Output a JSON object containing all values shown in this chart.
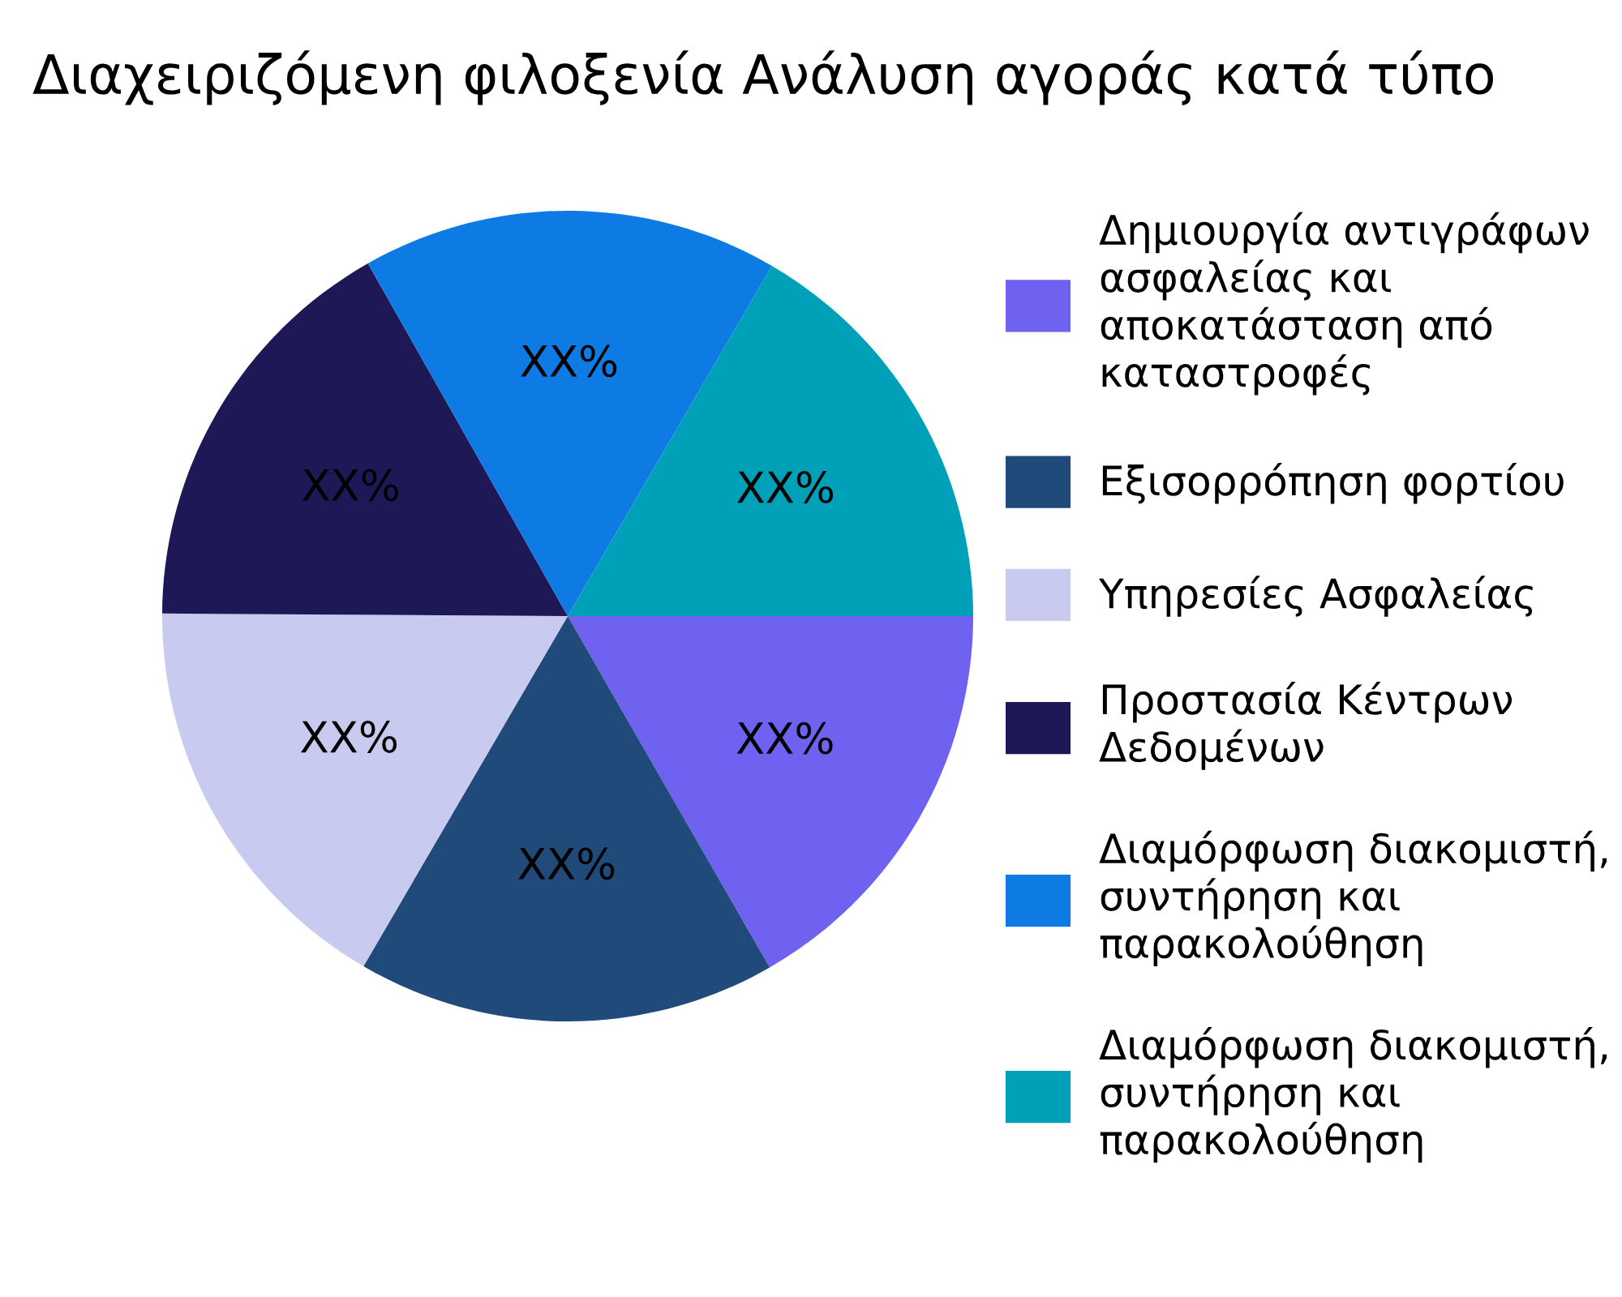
{
  "chart_data": {
    "type": "pie",
    "title": "Διαχειριζόμενη φιλοξενία Ανάλυση αγοράς κατά τύπο",
    "categories": [
      "Δημιουργία αντιγράφων ασφαλείας και αποκατάσταση από καταστροφές",
      "Εξισορρόπηση φορτίου",
      "Υπηρεσίες Ασφαλείας",
      "Προστασία Κέντρων Δεδομένων",
      "Διαμόρφωση διακομιστή, συντήρηση και παρακολούθηση",
      "Διαμόρφωση διακομιστή, συντήρηση και παρακολούθηση"
    ],
    "values": [
      16.7,
      16.7,
      16.7,
      16.7,
      16.6,
      16.6
    ],
    "colors": [
      "#6f62f0",
      "#1f4a7a",
      "#c8caf0",
      "#1e1856",
      "#0e7ae4",
      "#00a0b8"
    ],
    "value_labels": [
      "XX%",
      "XX%",
      "XX%",
      "XX%",
      "XX%",
      "XX%"
    ],
    "legend": "right"
  }
}
